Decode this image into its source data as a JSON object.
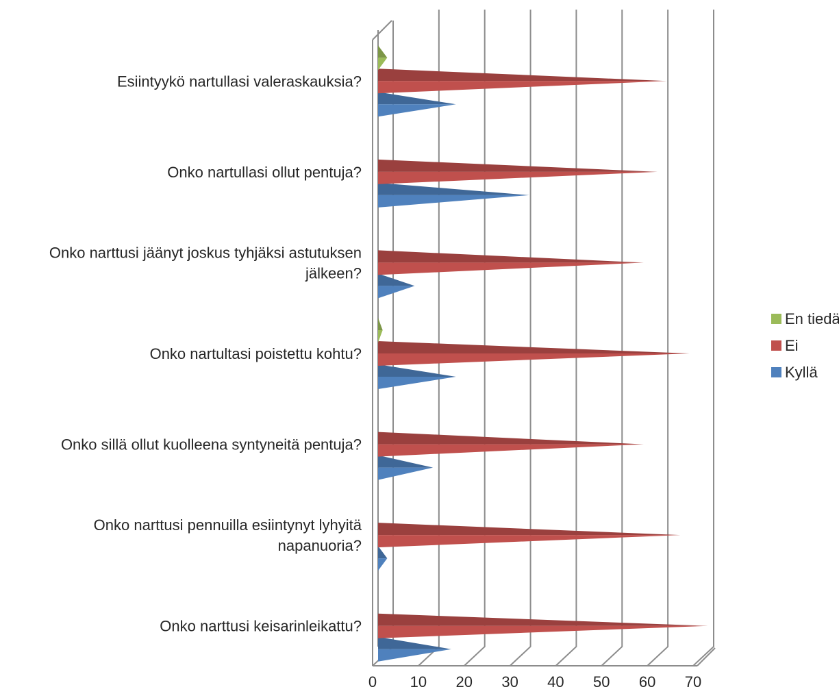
{
  "chart_data": {
    "type": "bar",
    "orientation": "horizontal",
    "style": "3d-cone",
    "categories": [
      [
        "Esiintyykö nartullasi valeraskauksia?"
      ],
      [
        "Onko nartullasi ollut pentuja?"
      ],
      [
        "Onko narttusi jäänyt joskus tyhjäksi astutuksen",
        "jälkeen?"
      ],
      [
        "Onko nartultasi poistettu kohtu?"
      ],
      [
        "Onko sillä ollut kuolleena syntyneitä pentuja?"
      ],
      [
        "Onko narttusi pennuilla esiintynyt lyhyitä",
        "napanuoria?"
      ],
      [
        "Onko narttusi keisarinleikattu?"
      ]
    ],
    "series": [
      {
        "name": "Kyllä",
        "color": "#4F81BD",
        "values": [
          17,
          33,
          8,
          17,
          12,
          2,
          16
        ]
      },
      {
        "name": "Ei",
        "color": "#C0504D",
        "values": [
          63,
          61,
          58,
          68,
          58,
          66,
          72
        ]
      },
      {
        "name": "En tiedä",
        "color": "#9BBB59",
        "values": [
          2,
          0,
          0,
          1,
          0,
          0,
          0
        ]
      }
    ],
    "xlim": [
      0,
      70
    ],
    "xticks": [
      "0",
      "10",
      "20",
      "30",
      "40",
      "50",
      "60",
      "70"
    ],
    "grid": true,
    "legend": "right",
    "legend_order": [
      "En tiedä",
      "Ei",
      "Kyllä"
    ]
  }
}
